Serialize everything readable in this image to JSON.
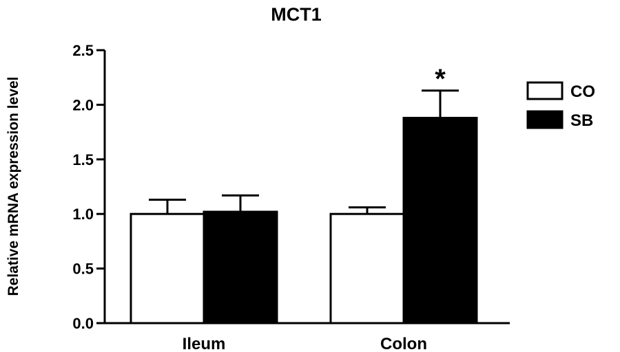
{
  "chart_data": {
    "type": "bar",
    "title": "MCT1",
    "xlabel": "",
    "ylabel": "Relative mRNA expression level",
    "categories": [
      "Ileum",
      "Colon"
    ],
    "ylim": [
      0,
      2.5
    ],
    "yticks": [
      "0.0",
      "0.5",
      "1.0",
      "1.5",
      "2.0",
      "2.5"
    ],
    "series": [
      {
        "name": "CO",
        "fill": "#ffffff",
        "values": [
          1.0,
          1.0
        ],
        "errors": [
          0.13,
          0.06
        ]
      },
      {
        "name": "SB",
        "fill": "#000000",
        "values": [
          1.02,
          1.88
        ],
        "errors": [
          0.15,
          0.25
        ]
      }
    ],
    "annotations": [
      {
        "category": "Colon",
        "series": "SB",
        "text": "*"
      }
    ],
    "legend_position": "right",
    "grid": false
  }
}
